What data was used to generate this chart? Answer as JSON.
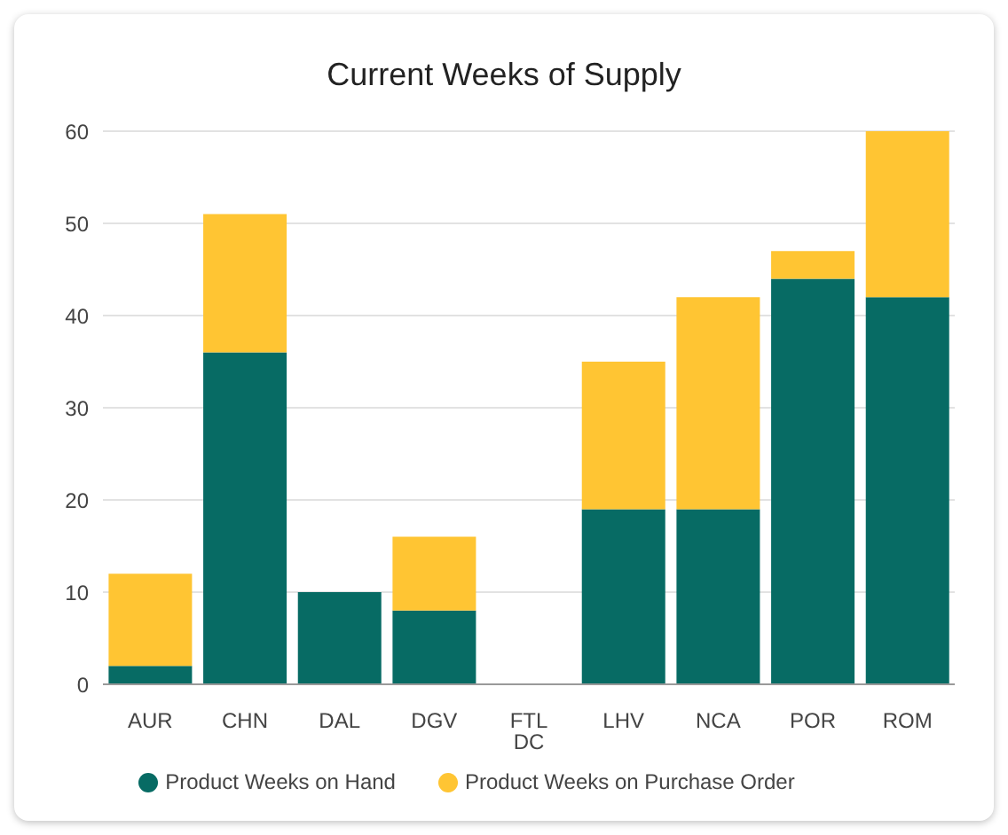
{
  "chart_data": {
    "type": "bar",
    "title": "Current Weeks of Supply",
    "categories": [
      "AUR",
      "CHN",
      "DAL",
      "DGV",
      "FTL DC",
      "LHV",
      "NCA",
      "POR",
      "ROM"
    ],
    "stacked": true,
    "series": [
      {
        "name": "Product Weeks on Hand",
        "color": "#076b64",
        "values": [
          2,
          36,
          10,
          8,
          0,
          19,
          19,
          44,
          42
        ]
      },
      {
        "name": "Product Weeks on Purchase Order",
        "color": "#ffc533",
        "values": [
          10,
          15,
          0,
          8,
          0,
          16,
          23,
          3,
          18
        ]
      }
    ],
    "ylim": [
      0,
      60
    ],
    "yticks": [
      0,
      10,
      20,
      30,
      40,
      50,
      60
    ],
    "grid": "y",
    "legend": "bottom"
  }
}
